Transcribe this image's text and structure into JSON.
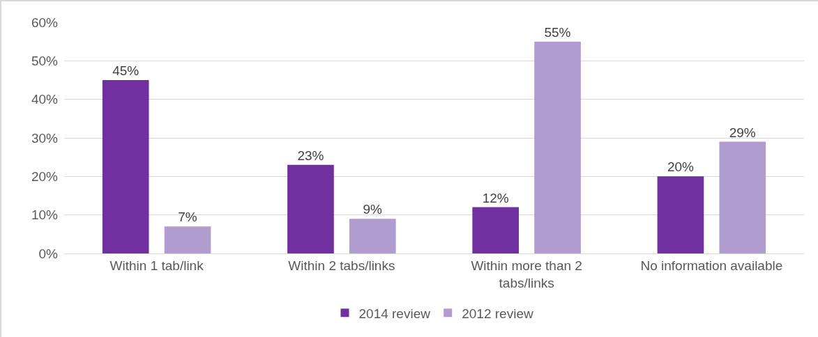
{
  "chart_data": {
    "type": "bar",
    "categories": [
      "Within 1 tab/link",
      "Within 2 tabs/links",
      "Within more than 2 tabs/links",
      "No information available"
    ],
    "series": [
      {
        "name": "2014 review",
        "color": "#7030a0",
        "values": [
          45,
          23,
          12,
          20
        ],
        "value_labels": [
          "45%",
          "23%",
          "12%",
          "20%"
        ]
      },
      {
        "name": "2012 review",
        "color": "#b09ccf",
        "values": [
          7,
          9,
          55,
          29
        ],
        "value_labels": [
          "7%",
          "9%",
          "55%",
          "29%"
        ]
      }
    ],
    "ylim": [
      0,
      60
    ],
    "yticks": [
      {
        "value": 0,
        "label": "0%"
      },
      {
        "value": 10,
        "label": "10%"
      },
      {
        "value": 20,
        "label": "20%"
      },
      {
        "value": 30,
        "label": "30%"
      },
      {
        "value": 40,
        "label": "40%"
      },
      {
        "value": 50,
        "label": "50%"
      },
      {
        "value": 60,
        "label": "60%"
      }
    ],
    "grid": "y",
    "legend": "bottom"
  }
}
